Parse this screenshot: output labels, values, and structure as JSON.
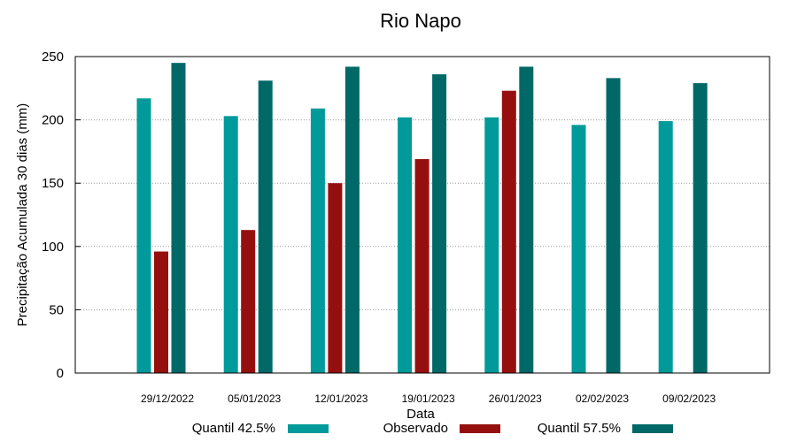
{
  "chart_data": {
    "type": "bar",
    "title": "Rio Napo",
    "xlabel": "Data",
    "ylabel": "Precipitação Acumulada 30 dias (mm)",
    "ylim": [
      0,
      250
    ],
    "yticks": [
      0,
      50,
      100,
      150,
      200,
      250
    ],
    "grid": true,
    "legend_position": "bottom",
    "categories": [
      "29/12/2022",
      "05/01/2023",
      "12/01/2023",
      "19/01/2023",
      "26/01/2023",
      "02/02/2023",
      "09/02/2023"
    ],
    "series": [
      {
        "name": "Quantil 42.5%",
        "color": "#009a9a",
        "values": [
          217,
          203,
          209,
          202,
          202,
          196,
          199
        ]
      },
      {
        "name": "Observado",
        "color": "#960f0f",
        "values": [
          96,
          113,
          150,
          169,
          223,
          null,
          null
        ]
      },
      {
        "name": "Quantil 57.5%",
        "color": "#006968",
        "values": [
          245,
          231,
          242,
          236,
          242,
          233,
          229
        ]
      }
    ]
  }
}
